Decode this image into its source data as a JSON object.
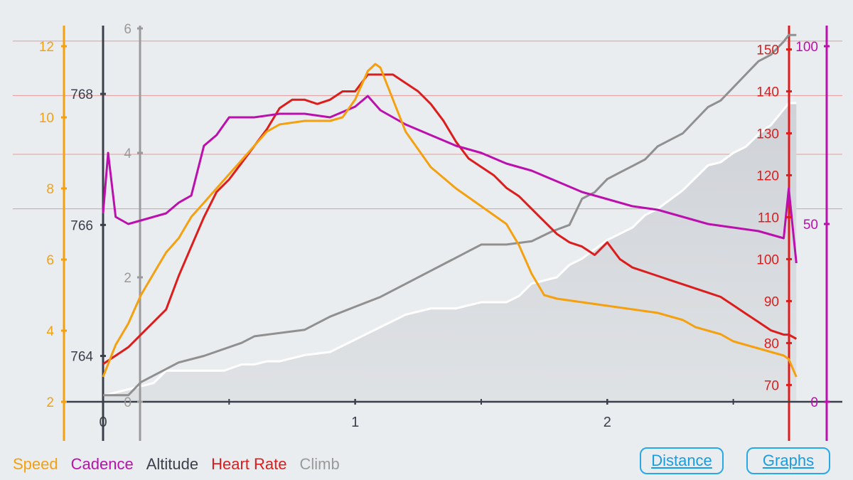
{
  "legend": {
    "speed": "Speed",
    "cadence": "Cadence",
    "altitude": "Altitude",
    "heart_rate": "Heart Rate",
    "climb": "Climb"
  },
  "buttons": {
    "distance": "Distance",
    "graphs": "Graphs"
  },
  "colors": {
    "background": "#e9edf0",
    "speed": "#f5a00f",
    "cadence": "#bb0fae",
    "altitude": "#3a3f4a",
    "heart_rate": "#dd1c1c",
    "climb": "#909090",
    "climb_fill": "#d3d6da",
    "zone_line": "#e79a9a",
    "button": "#1a9be0"
  },
  "chart_data": {
    "type": "line",
    "x_axis": {
      "ticks": [
        0,
        1,
        2
      ],
      "range": [
        0,
        2.8
      ]
    },
    "axes": {
      "speed": {
        "ticks": [
          2,
          4,
          6,
          8,
          10,
          12
        ],
        "range": [
          2,
          12.5
        ]
      },
      "altitude": {
        "ticks": [
          764,
          766,
          768
        ],
        "range": [
          763.3,
          769
        ]
      },
      "climb": {
        "ticks": [
          0,
          2,
          4,
          6
        ],
        "range": [
          0,
          6
        ]
      },
      "heart_rate": {
        "ticks": [
          70,
          80,
          90,
          100,
          110,
          120,
          130,
          140,
          150
        ],
        "range": [
          66,
          155
        ]
      },
      "cadence": {
        "ticks": [
          0,
          50,
          100
        ],
        "range": [
          0,
          105
        ]
      }
    },
    "heart_rate_zone_lines": [
      152,
      139,
      125,
      112
    ],
    "series": [
      {
        "name": "Climb",
        "axis": "climb",
        "x": [
          0,
          0.1,
          0.2,
          0.25,
          0.3,
          0.4,
          0.48,
          0.55,
          0.6,
          0.65,
          0.7,
          0.8,
          0.9,
          1.0,
          1.05,
          1.1,
          1.2,
          1.3,
          1.4,
          1.5,
          1.6,
          1.65,
          1.7,
          1.8,
          1.85,
          1.9,
          1.95,
          2.0,
          2.05,
          2.1,
          2.15,
          2.2,
          2.25,
          2.3,
          2.35,
          2.4,
          2.45,
          2.5,
          2.55,
          2.6,
          2.65,
          2.7,
          2.72,
          2.75
        ],
        "values": [
          0.1,
          0.2,
          0.3,
          0.5,
          0.5,
          0.5,
          0.5,
          0.6,
          0.6,
          0.65,
          0.65,
          0.75,
          0.8,
          1.0,
          1.1,
          1.2,
          1.4,
          1.5,
          1.5,
          1.6,
          1.6,
          1.7,
          1.9,
          2.0,
          2.2,
          2.3,
          2.45,
          2.6,
          2.7,
          2.8,
          3.0,
          3.1,
          3.25,
          3.4,
          3.6,
          3.8,
          3.85,
          4.0,
          4.1,
          4.3,
          4.45,
          4.7,
          4.8,
          4.8
        ]
      },
      {
        "name": "Altitude",
        "axis": "altitude",
        "x": [
          0,
          0.1,
          0.15,
          0.3,
          0.4,
          0.55,
          0.6,
          0.8,
          0.9,
          1.0,
          1.1,
          1.2,
          1.3,
          1.4,
          1.45,
          1.5,
          1.55,
          1.6,
          1.7,
          1.78,
          1.85,
          1.9,
          1.95,
          2.0,
          2.05,
          2.1,
          2.15,
          2.2,
          2.3,
          2.35,
          2.4,
          2.45,
          2.5,
          2.55,
          2.6,
          2.65,
          2.7,
          2.72,
          2.75
        ],
        "values": [
          763.4,
          763.4,
          763.6,
          763.9,
          764.0,
          764.2,
          764.3,
          764.4,
          764.6,
          764.75,
          764.9,
          765.1,
          765.3,
          765.5,
          765.6,
          765.7,
          765.7,
          765.7,
          765.75,
          765.9,
          766.0,
          766.4,
          766.5,
          766.7,
          766.8,
          766.9,
          767.0,
          767.2,
          767.4,
          767.6,
          767.8,
          767.9,
          768.1,
          768.3,
          768.5,
          768.6,
          768.8,
          768.9,
          768.9
        ]
      },
      {
        "name": "Heart Rate",
        "axis": "heart_rate",
        "x": [
          0,
          0.05,
          0.1,
          0.15,
          0.2,
          0.25,
          0.3,
          0.35,
          0.4,
          0.45,
          0.5,
          0.55,
          0.6,
          0.65,
          0.7,
          0.75,
          0.8,
          0.85,
          0.9,
          0.95,
          1.0,
          1.05,
          1.08,
          1.1,
          1.15,
          1.2,
          1.25,
          1.3,
          1.35,
          1.4,
          1.45,
          1.5,
          1.55,
          1.6,
          1.65,
          1.7,
          1.75,
          1.8,
          1.85,
          1.9,
          1.95,
          2.0,
          2.05,
          2.1,
          2.15,
          2.2,
          2.25,
          2.3,
          2.35,
          2.4,
          2.45,
          2.5,
          2.55,
          2.6,
          2.65,
          2.7,
          2.72,
          2.75
        ],
        "values": [
          75,
          77,
          79,
          82,
          85,
          88,
          96,
          103,
          110,
          116,
          119,
          123,
          127,
          131,
          136,
          138,
          138,
          137,
          138,
          140,
          140,
          144,
          144,
          144,
          144,
          142,
          140,
          137,
          133,
          128,
          124,
          122,
          120,
          117,
          115,
          112,
          109,
          106,
          104,
          103,
          101,
          104,
          100,
          98,
          97,
          96,
          95,
          94,
          93,
          92,
          91,
          89,
          87,
          85,
          83,
          82,
          82,
          81
        ]
      },
      {
        "name": "Cadence",
        "axis": "cadence",
        "x": [
          0,
          0.02,
          0.05,
          0.1,
          0.15,
          0.2,
          0.25,
          0.3,
          0.35,
          0.4,
          0.45,
          0.5,
          0.6,
          0.7,
          0.8,
          0.9,
          1.0,
          1.05,
          1.1,
          1.2,
          1.3,
          1.4,
          1.5,
          1.6,
          1.7,
          1.8,
          1.9,
          2.0,
          2.1,
          2.2,
          2.3,
          2.4,
          2.5,
          2.6,
          2.65,
          2.7,
          2.72,
          2.75
        ],
        "values": [
          53,
          70,
          52,
          50,
          51,
          52,
          53,
          56,
          58,
          72,
          75,
          80,
          80,
          81,
          81,
          80,
          83,
          86,
          82,
          78,
          75,
          72,
          70,
          67,
          65,
          62,
          59,
          57,
          55,
          54,
          52,
          50,
          49,
          48,
          47,
          46,
          60,
          39
        ]
      },
      {
        "name": "Speed",
        "axis": "speed",
        "x": [
          0,
          0.05,
          0.1,
          0.15,
          0.2,
          0.25,
          0.3,
          0.35,
          0.4,
          0.45,
          0.5,
          0.55,
          0.6,
          0.65,
          0.7,
          0.8,
          0.9,
          0.95,
          1.0,
          1.05,
          1.08,
          1.1,
          1.15,
          1.2,
          1.25,
          1.3,
          1.35,
          1.4,
          1.5,
          1.6,
          1.65,
          1.7,
          1.75,
          1.8,
          1.9,
          2.0,
          2.1,
          2.2,
          2.3,
          2.35,
          2.4,
          2.45,
          2.5,
          2.55,
          2.6,
          2.65,
          2.7,
          2.72,
          2.75
        ],
        "values": [
          2.7,
          3.6,
          4.2,
          5.0,
          5.6,
          6.2,
          6.6,
          7.2,
          7.6,
          8.0,
          8.4,
          8.8,
          9.2,
          9.6,
          9.8,
          9.9,
          9.9,
          10.0,
          10.5,
          11.3,
          11.5,
          11.4,
          10.5,
          9.6,
          9.1,
          8.6,
          8.3,
          8.0,
          7.5,
          7.0,
          6.4,
          5.6,
          5.0,
          4.9,
          4.8,
          4.7,
          4.6,
          4.5,
          4.3,
          4.1,
          4.0,
          3.9,
          3.7,
          3.6,
          3.5,
          3.4,
          3.3,
          3.2,
          2.7
        ]
      }
    ]
  }
}
